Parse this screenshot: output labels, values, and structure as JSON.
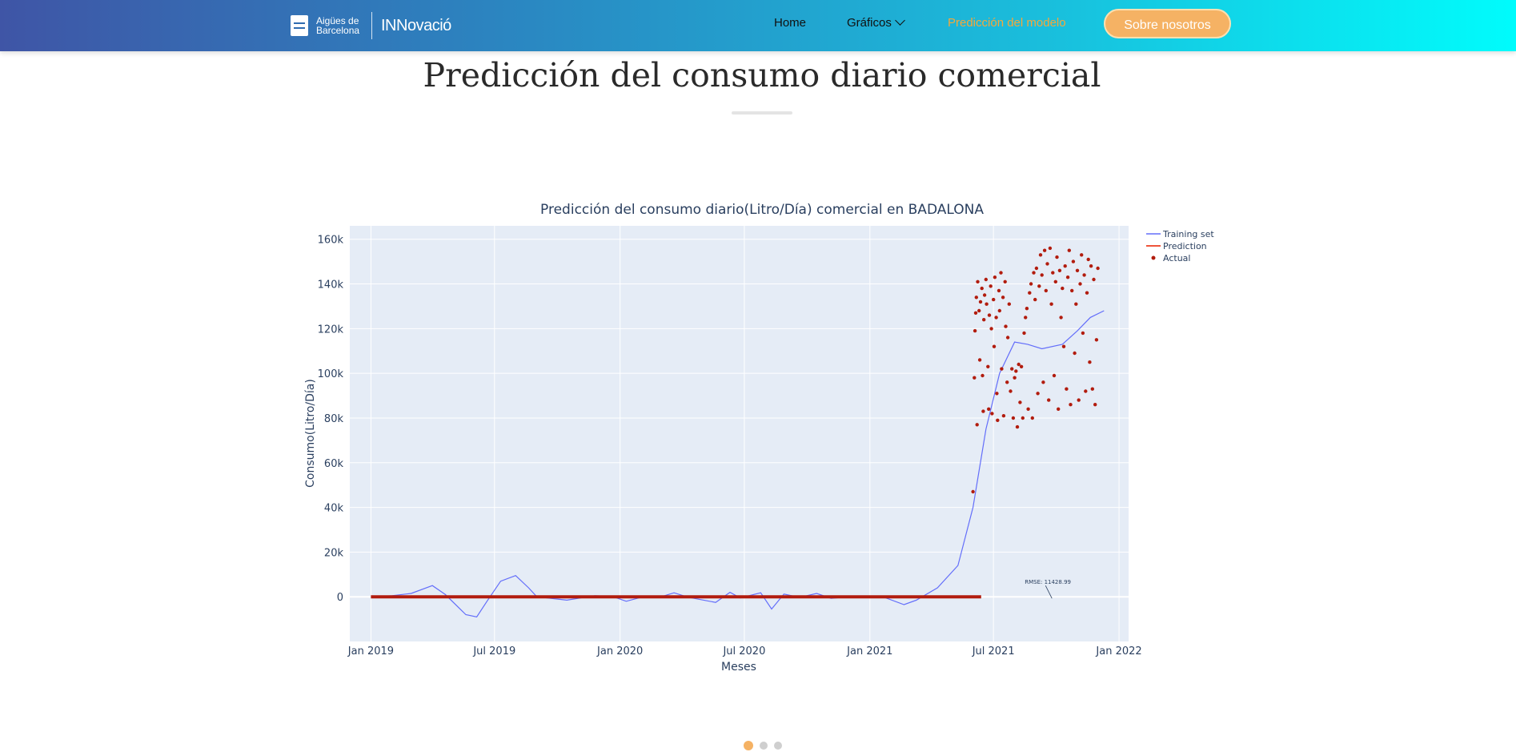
{
  "nav": {
    "logo_line1": "Aigües de",
    "logo_line2": "Barcelona",
    "logo_innovacio": "INNovació",
    "links": [
      {
        "label": "Home"
      },
      {
        "label": "Gráficos"
      },
      {
        "label": "Predicción del modelo"
      }
    ],
    "cta": "Sobre nosotros",
    "accent_color": "#f5a83a"
  },
  "page": {
    "title": "Predicción del consumo diario comercial"
  },
  "carousel": {
    "slides": 3,
    "active": 0
  },
  "chart_data": {
    "type": "line",
    "title": "Predicción del consumo diario(Litro/Día) comercial en BADALONA",
    "xlabel": "Meses",
    "ylabel": "Consumo(Litro/Día)",
    "xlim": [
      "2018-12-01",
      "2022-01-15"
    ],
    "ylim": [
      -20000,
      166000
    ],
    "yticks": [
      0,
      20000,
      40000,
      60000,
      80000,
      100000,
      120000,
      140000,
      160000
    ],
    "yticklabels": [
      "0",
      "20k",
      "40k",
      "60k",
      "80k",
      "100k",
      "120k",
      "140k",
      "160k"
    ],
    "xticks": [
      "2019-01-01",
      "2019-07-01",
      "2020-01-01",
      "2020-07-01",
      "2021-01-01",
      "2021-07-01",
      "2022-01-01"
    ],
    "xticklabels": [
      "Jan 2019",
      "Jul 2019",
      "Jan 2020",
      "Jul 2020",
      "Jan 2021",
      "Jul 2021",
      "Jan 2022"
    ],
    "grid": true,
    "legend_position": "top-right",
    "annotation": {
      "text": "RMSE: 11428.99",
      "x": "2021-09-20",
      "y": 0
    },
    "colors": {
      "training": "#636efa",
      "prediction": "#ef553b",
      "actual": "#b21c0e",
      "plot_bg": "#e5ecf6"
    },
    "series": [
      {
        "name": "Training set",
        "kind": "line",
        "points": [
          [
            "2019-01-01",
            0
          ],
          [
            "2019-02-01",
            500
          ],
          [
            "2019-03-01",
            1500
          ],
          [
            "2019-04-01",
            5000
          ],
          [
            "2019-04-20",
            1000
          ],
          [
            "2019-05-20",
            -8000
          ],
          [
            "2019-06-05",
            -9000
          ],
          [
            "2019-06-20",
            -2000
          ],
          [
            "2019-07-10",
            7000
          ],
          [
            "2019-08-01",
            9500
          ],
          [
            "2019-08-20",
            4000
          ],
          [
            "2019-09-01",
            0
          ],
          [
            "2019-10-15",
            -1500
          ],
          [
            "2019-11-25",
            500
          ],
          [
            "2019-12-20",
            200
          ],
          [
            "2020-01-10",
            -2000
          ],
          [
            "2020-02-01",
            -200
          ],
          [
            "2020-03-01",
            0
          ],
          [
            "2020-03-20",
            1800
          ],
          [
            "2020-04-10",
            -200
          ],
          [
            "2020-05-20",
            -2500
          ],
          [
            "2020-06-10",
            2000
          ],
          [
            "2020-06-25",
            -500
          ],
          [
            "2020-07-25",
            1800
          ],
          [
            "2020-08-10",
            -5500
          ],
          [
            "2020-08-28",
            1200
          ],
          [
            "2020-09-20",
            -300
          ],
          [
            "2020-10-15",
            1500
          ],
          [
            "2020-11-05",
            -700
          ],
          [
            "2020-12-10",
            200
          ],
          [
            "2021-01-20",
            0
          ],
          [
            "2021-02-20",
            -3500
          ],
          [
            "2021-03-10",
            -1500
          ],
          [
            "2021-04-10",
            4000
          ],
          [
            "2021-05-10",
            14000
          ],
          [
            "2021-06-01",
            40000
          ],
          [
            "2021-06-20",
            75000
          ],
          [
            "2021-07-10",
            100000
          ],
          [
            "2021-08-01",
            114000
          ],
          [
            "2021-08-20",
            113000
          ],
          [
            "2021-09-10",
            111000
          ],
          [
            "2021-10-10",
            113000
          ],
          [
            "2021-11-01",
            119000
          ],
          [
            "2021-11-20",
            125000
          ],
          [
            "2021-12-10",
            128000
          ]
        ]
      },
      {
        "name": "Prediction",
        "kind": "line",
        "points": [
          [
            "2019-01-01",
            0
          ],
          [
            "2021-06-13",
            0
          ]
        ]
      },
      {
        "name": "Actual",
        "kind": "markers",
        "points": [
          [
            "2021-06-01",
            47000
          ],
          [
            "2021-06-03",
            98000
          ],
          [
            "2021-06-04",
            119000
          ],
          [
            "2021-06-05",
            127000
          ],
          [
            "2021-06-06",
            134000
          ],
          [
            "2021-06-07",
            77000
          ],
          [
            "2021-06-08",
            141000
          ],
          [
            "2021-06-10",
            128000
          ],
          [
            "2021-06-11",
            106000
          ],
          [
            "2021-06-12",
            132000
          ],
          [
            "2021-06-14",
            138000
          ],
          [
            "2021-06-15",
            99000
          ],
          [
            "2021-06-16",
            83000
          ],
          [
            "2021-06-17",
            124000
          ],
          [
            "2021-06-18",
            135000
          ],
          [
            "2021-06-20",
            142000
          ],
          [
            "2021-06-21",
            131000
          ],
          [
            "2021-06-23",
            103000
          ],
          [
            "2021-06-24",
            84000
          ],
          [
            "2021-06-25",
            126000
          ],
          [
            "2021-06-27",
            139000
          ],
          [
            "2021-06-28",
            120000
          ],
          [
            "2021-06-29",
            82000
          ],
          [
            "2021-07-01",
            133000
          ],
          [
            "2021-07-02",
            112000
          ],
          [
            "2021-07-03",
            143000
          ],
          [
            "2021-07-05",
            125000
          ],
          [
            "2021-07-06",
            91000
          ],
          [
            "2021-07-07",
            79000
          ],
          [
            "2021-07-09",
            137000
          ],
          [
            "2021-07-10",
            128000
          ],
          [
            "2021-07-12",
            145000
          ],
          [
            "2021-07-13",
            102000
          ],
          [
            "2021-07-15",
            134000
          ],
          [
            "2021-07-16",
            81000
          ],
          [
            "2021-07-18",
            141000
          ],
          [
            "2021-07-19",
            121000
          ],
          [
            "2021-07-21",
            96000
          ],
          [
            "2021-07-22",
            116000
          ],
          [
            "2021-07-24",
            131000
          ],
          [
            "2021-07-26",
            92000
          ],
          [
            "2021-07-28",
            102000
          ],
          [
            "2021-07-30",
            80000
          ],
          [
            "2021-08-01",
            98000
          ],
          [
            "2021-08-03",
            101000
          ],
          [
            "2021-08-05",
            76000
          ],
          [
            "2021-08-07",
            104000
          ],
          [
            "2021-08-09",
            87000
          ],
          [
            "2021-08-11",
            103000
          ],
          [
            "2021-08-13",
            80000
          ],
          [
            "2021-08-15",
            118000
          ],
          [
            "2021-08-17",
            125000
          ],
          [
            "2021-08-19",
            129000
          ],
          [
            "2021-08-21",
            84000
          ],
          [
            "2021-08-23",
            136000
          ],
          [
            "2021-08-25",
            140000
          ],
          [
            "2021-08-27",
            80000
          ],
          [
            "2021-08-29",
            145000
          ],
          [
            "2021-08-31",
            133000
          ],
          [
            "2021-09-02",
            147000
          ],
          [
            "2021-09-04",
            91000
          ],
          [
            "2021-09-06",
            139000
          ],
          [
            "2021-09-08",
            153000
          ],
          [
            "2021-09-10",
            144000
          ],
          [
            "2021-09-12",
            96000
          ],
          [
            "2021-09-14",
            155000
          ],
          [
            "2021-09-16",
            137000
          ],
          [
            "2021-09-18",
            149000
          ],
          [
            "2021-09-20",
            88000
          ],
          [
            "2021-09-22",
            156000
          ],
          [
            "2021-09-24",
            131000
          ],
          [
            "2021-09-26",
            145000
          ],
          [
            "2021-09-28",
            99000
          ],
          [
            "2021-09-30",
            141000
          ],
          [
            "2021-10-02",
            152000
          ],
          [
            "2021-10-04",
            84000
          ],
          [
            "2021-10-06",
            146000
          ],
          [
            "2021-10-08",
            125000
          ],
          [
            "2021-10-10",
            138000
          ],
          [
            "2021-10-12",
            112000
          ],
          [
            "2021-10-14",
            148000
          ],
          [
            "2021-10-16",
            93000
          ],
          [
            "2021-10-18",
            143000
          ],
          [
            "2021-10-20",
            155000
          ],
          [
            "2021-10-22",
            86000
          ],
          [
            "2021-10-24",
            137000
          ],
          [
            "2021-10-26",
            150000
          ],
          [
            "2021-10-28",
            109000
          ],
          [
            "2021-10-30",
            131000
          ],
          [
            "2021-11-01",
            146000
          ],
          [
            "2021-11-03",
            88000
          ],
          [
            "2021-11-05",
            140000
          ],
          [
            "2021-11-07",
            153000
          ],
          [
            "2021-11-09",
            118000
          ],
          [
            "2021-11-11",
            144000
          ],
          [
            "2021-11-13",
            92000
          ],
          [
            "2021-11-15",
            136000
          ],
          [
            "2021-11-17",
            151000
          ],
          [
            "2021-11-19",
            105000
          ],
          [
            "2021-11-21",
            148000
          ],
          [
            "2021-11-23",
            93000
          ],
          [
            "2021-11-25",
            142000
          ],
          [
            "2021-11-27",
            86000
          ],
          [
            "2021-11-29",
            115000
          ],
          [
            "2021-12-01",
            147000
          ]
        ]
      }
    ]
  }
}
